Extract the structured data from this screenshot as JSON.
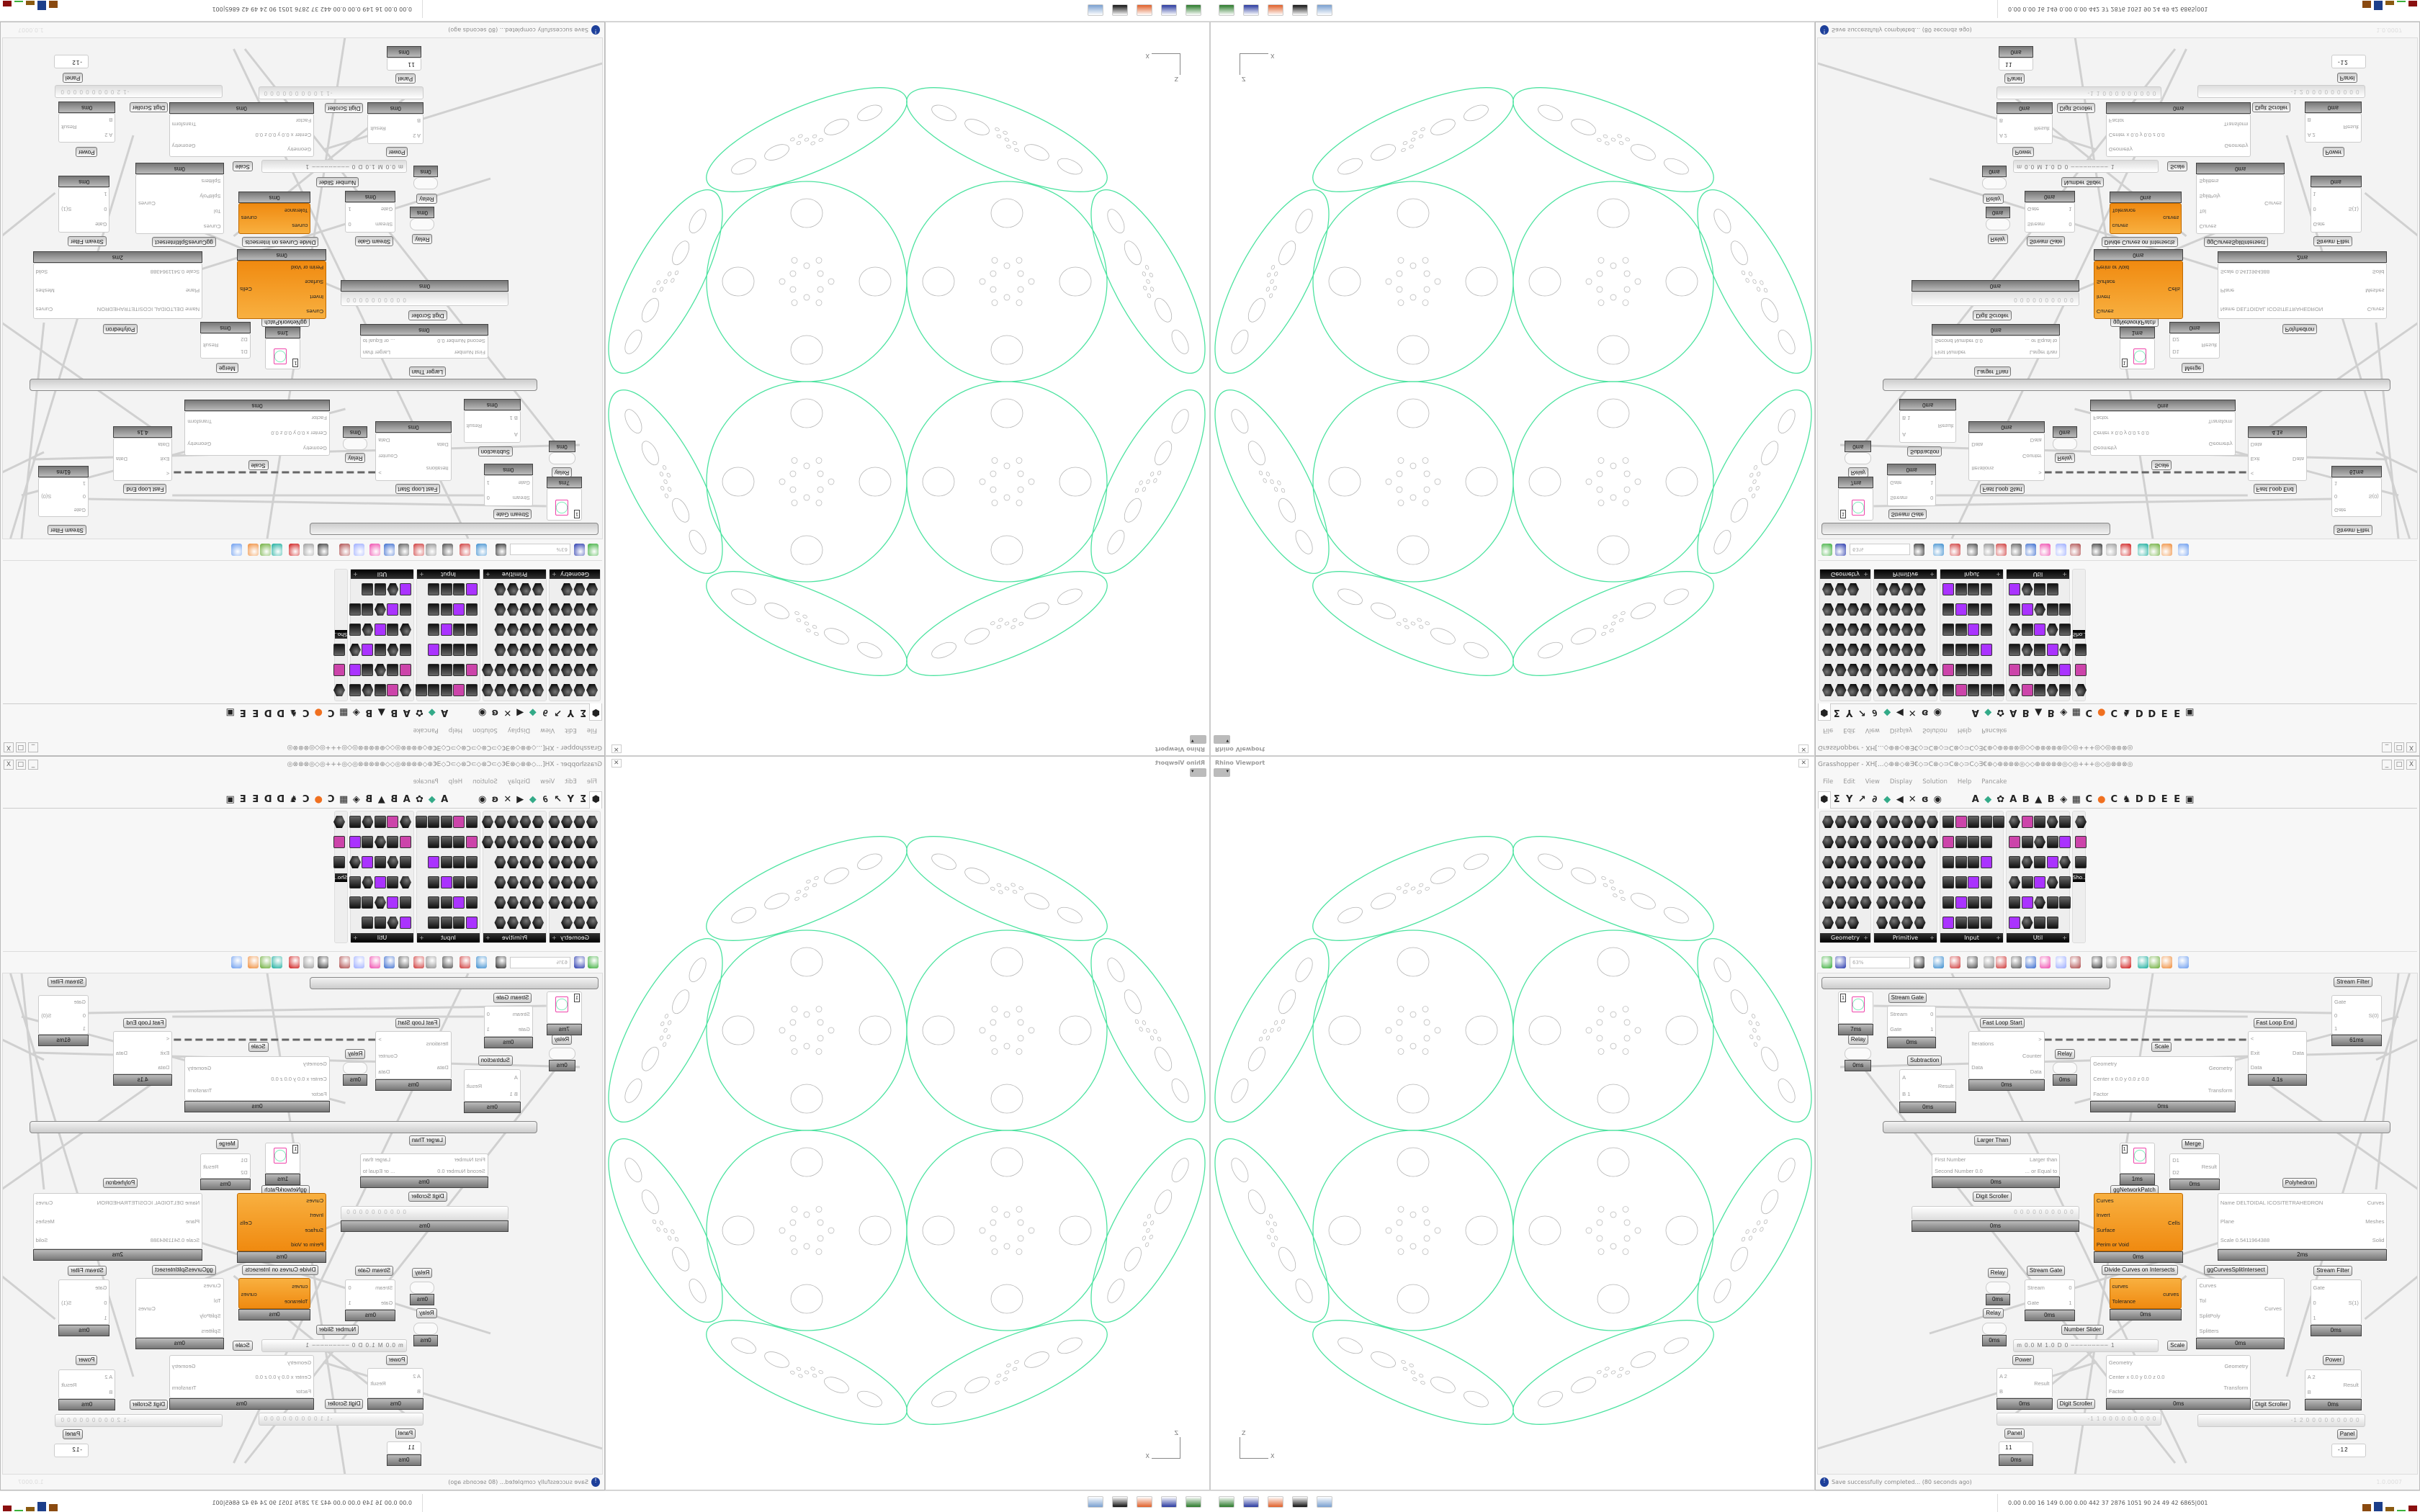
{
  "rhino": {
    "title": "Rhino Viewport",
    "close": "✕",
    "axis_z": "Z",
    "axis_x": "X",
    "curve_color": "#4de3a0",
    "detail_color": "#b5b5b5"
  },
  "taskbar": {
    "apps": [
      "terminal-icon",
      "save64-icon",
      "firefox-icon",
      "rhino-icon",
      "calculator-icon"
    ],
    "tray_text": "0.00 0.00  16  149  0.00 0.00  442  37  2876 1051  90  24  49  42  6865|001",
    "bar_colors": [
      "#8a4a10",
      "#1c3e8a",
      "#8a5a10",
      "#3ab03a",
      "#8a1010"
    ]
  },
  "gh": {
    "title": "Grasshopper - XH[...◇⊕⊗◇⊗∃€◇⊃C⊗◇⊃C⊗◇⊃C◇∃€⊕◇⊕⊗⊗⊗◎◇◇⊕⊗⊗⊗⊗◎◇◎+++◎◇◎⊗⊗⊗◎",
    "window_buttons": [
      "_",
      "□",
      "X"
    ],
    "menu": [
      "File",
      "Edit",
      "View",
      "Display",
      "Solution",
      "Help",
      "Pancake"
    ],
    "tabs": [
      "⬢",
      "Σ",
      "Y",
      "↗",
      "∂",
      "◆",
      "◀",
      "✕",
      "ɞ",
      "◉",
      "",
      "",
      "A",
      "◆",
      "✿",
      "A",
      "B",
      "▲",
      "B",
      "◈",
      "▦",
      "C",
      "●",
      "C",
      "♞",
      "D",
      "D",
      "E",
      "E",
      "▣"
    ],
    "palettes": [
      {
        "name": "Geometry",
        "shape": "hex"
      },
      {
        "name": "Primitive",
        "shape": "hex"
      },
      {
        "name": "Input",
        "shape": "square"
      },
      {
        "name": "Util",
        "shape": "mixed"
      },
      {
        "name": "Sho..",
        "shape": "mixed"
      }
    ],
    "zoom": "63%",
    "group_color": "#cccccc",
    "canvas": {
      "labels": [
        "Stream Gate",
        "Relay",
        "Fast Loop Start",
        "Subtraction",
        "Relay",
        "Scale",
        "Fast Loop End",
        "Stream Filter",
        "Larger Than",
        "Digit Scroller",
        "ggNetworkPatch",
        "Merge",
        "Polyhedron",
        "Relay",
        "Stream Gate",
        "Divide Curves on Intersects",
        "ggCurvesSplitIntersect",
        "Stream Filter",
        "Relay",
        "Number Slider",
        "Scale",
        "Power",
        "Power",
        "Digit Scroller",
        "Digit Scroller",
        "Panel",
        "Panel"
      ],
      "components": [
        {
          "kind": "circle",
          "value": "1",
          "inputs": [
            "",
            ""
          ],
          "outputs": [
            ""
          ],
          "footer": "7ms"
        },
        {
          "kind": "std",
          "inputs": [
            "Stream",
            "Gate"
          ],
          "outputs": [
            "0",
            "1"
          ],
          "footer": "0ms"
        },
        {
          "kind": "relay",
          "inputs": [],
          "outputs": [],
          "footer": "0ms"
        },
        {
          "kind": "std",
          "inputs": [
            "Iterations",
            "Data"
          ],
          "outputs": [
            ">",
            "Counter",
            "Data"
          ],
          "footer": "0ms"
        },
        {
          "kind": "std",
          "inputs": [
            "A",
            "B  1"
          ],
          "outputs": [
            "Result"
          ],
          "footer": "0ms"
        },
        {
          "kind": "relay",
          "inputs": [],
          "outputs": [],
          "footer": "0ms"
        },
        {
          "kind": "std",
          "inputs": [
            "Geometry",
            "Center x 0.0 y 0.0 z 0.0",
            "Factor"
          ],
          "outputs": [
            "Geometry",
            "Transform"
          ],
          "footer": "0ms"
        },
        {
          "kind": "std",
          "inputs": [
            "<",
            "Exit",
            "Data"
          ],
          "outputs": [
            "Data"
          ],
          "footer": "4.1s"
        },
        {
          "kind": "std",
          "inputs": [
            "Gate",
            "0",
            "1"
          ],
          "outputs": [
            "S(0)"
          ],
          "footer": "61ms"
        },
        {
          "kind": "std",
          "inputs": [
            "First Number",
            "Second Number 0.0"
          ],
          "outputs": [
            "Larger than",
            "... or Equal to"
          ],
          "footer": "0ms"
        },
        {
          "kind": "scroller",
          "value": "0 0 0 0 0 0 0 0 0 0",
          "inputs": [],
          "outputs": [],
          "footer": "0ms"
        },
        {
          "kind": "circle",
          "value": "1",
          "inputs": [
            "",
            ""
          ],
          "outputs": [
            ""
          ],
          "footer": "1ms"
        },
        {
          "kind": "std",
          "inputs": [
            "D1",
            "D2"
          ],
          "outputs": [
            "Result"
          ],
          "footer": "0ms"
        },
        {
          "kind": "std",
          "inputs": [
            "Name DELTOIDAL ICOSITETRAHEDRON",
            "Plane",
            "Scale 0.5411964388"
          ],
          "outputs": [
            "Curves",
            "Meshes",
            "Solid"
          ],
          "footer": "2ms"
        },
        {
          "kind": "orange",
          "inputs": [
            "Curves",
            "Invert",
            "Surface",
            "Perim or Void"
          ],
          "outputs": [
            "Cells"
          ],
          "footer": "0ms"
        },
        {
          "kind": "relay",
          "inputs": [],
          "outputs": [],
          "footer": "0ms"
        },
        {
          "kind": "std",
          "inputs": [
            "Stream",
            "Gate"
          ],
          "outputs": [
            "0",
            "1"
          ],
          "footer": "0ms"
        },
        {
          "kind": "orange",
          "inputs": [
            "curves",
            "Tolerance"
          ],
          "outputs": [
            "curves"
          ],
          "footer": "0ms"
        },
        {
          "kind": "std",
          "inputs": [
            "Curves",
            "Tol",
            "SplitPoly",
            "Splitters"
          ],
          "outputs": [
            "Curves"
          ],
          "footer": "0ms"
        },
        {
          "kind": "std",
          "inputs": [
            "Gate",
            "0",
            "1"
          ],
          "outputs": [
            "S(1)"
          ],
          "footer": "0ms"
        },
        {
          "kind": "relay",
          "inputs": [],
          "outputs": [],
          "footer": "0ms"
        },
        {
          "kind": "slider",
          "value": "m 0.0  M 1.0  D 0  ┄┄┄┄┄┄┄┄┄ 1",
          "inputs": [],
          "outputs": []
        },
        {
          "kind": "std",
          "inputs": [
            "A  2",
            "B"
          ],
          "outputs": [
            "Result"
          ],
          "footer": "0ms"
        },
        {
          "kind": "std",
          "inputs": [
            "Geometry",
            "Center x 0.0 y 0.0 z 0.0",
            "Factor"
          ],
          "outputs": [
            "Geometry",
            "Transform"
          ],
          "footer": "0ms"
        },
        {
          "kind": "std",
          "inputs": [
            "A  2",
            "B"
          ],
          "outputs": [
            "Result"
          ],
          "footer": "0ms"
        },
        {
          "kind": "scroller",
          "value": "-1 1 0 0 0 0 0 0 0 0 0",
          "inputs": [],
          "outputs": []
        },
        {
          "kind": "scroller",
          "value": "-1 2 0 0 0 0 0 0 0 0 0",
          "inputs": [],
          "outputs": []
        },
        {
          "kind": "panel",
          "value": "11",
          "inputs": [],
          "outputs": [],
          "footer": "0ms"
        },
        {
          "kind": "panel",
          "value": "-12",
          "inputs": [],
          "outputs": []
        }
      ]
    },
    "status": {
      "message": "Save successfully completed... (80 seconds ago)",
      "version": "1.0.0007"
    }
  }
}
